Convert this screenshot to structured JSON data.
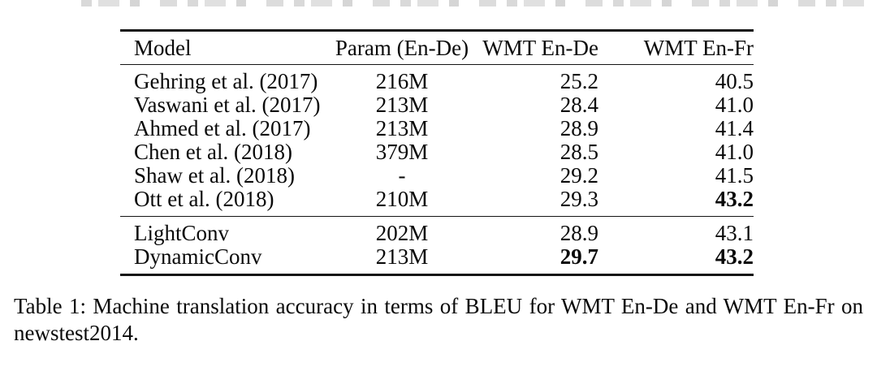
{
  "page": {
    "background_color": "#ffffff",
    "text_color": "#0a0a0a",
    "rule_color": "#141414"
  },
  "table": {
    "columns": [
      {
        "label": "Model",
        "align": "left"
      },
      {
        "label": "Param (En-De)",
        "align": "center"
      },
      {
        "label": "WMT En-De",
        "align": "right"
      },
      {
        "label": "WMT En-Fr",
        "align": "right"
      }
    ],
    "sections": [
      {
        "name": "prior-work",
        "rows": [
          {
            "model": "Gehring et al. (2017)",
            "param": "216M",
            "wmt_en_de": "25.2",
            "wmt_en_fr": "40.5",
            "bold_cells": []
          },
          {
            "model": "Vaswani et al. (2017)",
            "param": "213M",
            "wmt_en_de": "28.4",
            "wmt_en_fr": "41.0",
            "bold_cells": []
          },
          {
            "model": "Ahmed et al. (2017)",
            "param": "213M",
            "wmt_en_de": "28.9",
            "wmt_en_fr": "41.4",
            "bold_cells": []
          },
          {
            "model": "Chen et al. (2018)",
            "param": "379M",
            "wmt_en_de": "28.5",
            "wmt_en_fr": "41.0",
            "bold_cells": []
          },
          {
            "model": "Shaw et al. (2018)",
            "param": "-",
            "wmt_en_de": "29.2",
            "wmt_en_fr": "41.5",
            "bold_cells": []
          },
          {
            "model": "Ott et al. (2018)",
            "param": "210M",
            "wmt_en_de": "29.3",
            "wmt_en_fr": "43.2",
            "bold_cells": [
              "wmt_en_fr"
            ]
          }
        ]
      },
      {
        "name": "this-work",
        "rows": [
          {
            "model": "LightConv",
            "param": "202M",
            "wmt_en_de": "28.9",
            "wmt_en_fr": "43.1",
            "bold_cells": []
          },
          {
            "model": "DynamicConv",
            "param": "213M",
            "wmt_en_de": "29.7",
            "wmt_en_fr": "43.2",
            "bold_cells": [
              "wmt_en_de",
              "wmt_en_fr"
            ]
          }
        ]
      }
    ]
  },
  "caption": {
    "full_text": "Table 1: Machine translation accuracy in terms of BLEU for WMT En-De and WMT En-Fr on newstest2014.",
    "lines": [
      "Table 1: Machine translation accuracy in terms of BLEU for WMT En-De and WMT En-Fr on",
      "newstest2014."
    ]
  }
}
